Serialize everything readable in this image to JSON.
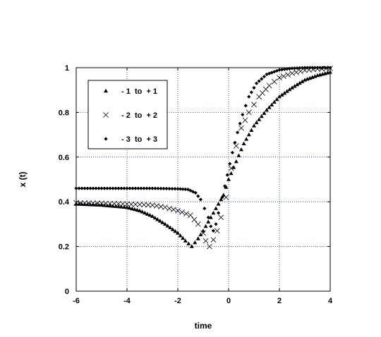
{
  "chart_data": {
    "type": "scatter",
    "title": "",
    "xlabel": "time",
    "ylabel": "x (t)",
    "xlim": [
      -6,
      4
    ],
    "ylim": [
      0,
      1
    ],
    "x_ticks": [
      -6,
      -4,
      -2,
      0,
      2,
      4
    ],
    "y_ticks": [
      0,
      0.2,
      0.4,
      0.6,
      0.8,
      1
    ],
    "x_tick_labels": [
      "-6",
      "-4",
      "-2",
      "0",
      "2",
      "4"
    ],
    "y_tick_labels": [
      "0",
      "0.2",
      "0.4",
      "0.6",
      "0.8",
      "1"
    ],
    "grid": true,
    "legend_position": "top-left",
    "series": [
      {
        "name": "- 1  to  + 1",
        "marker": "triangle",
        "points": [
          [
            -6,
            0.39
          ],
          [
            -5,
            0.385
          ],
          [
            -4,
            0.375
          ],
          [
            -3.5,
            0.36
          ],
          [
            -3,
            0.335
          ],
          [
            -2.5,
            0.3
          ],
          [
            -2,
            0.26
          ],
          [
            -1.7,
            0.225
          ],
          [
            -1.45,
            0.2
          ],
          [
            -1.2,
            0.235
          ],
          [
            -1,
            0.27
          ],
          [
            -0.8,
            0.31
          ],
          [
            -0.5,
            0.37
          ],
          [
            -0.2,
            0.43
          ],
          [
            0,
            0.5
          ],
          [
            0.3,
            0.58
          ],
          [
            0.6,
            0.66
          ],
          [
            1,
            0.74
          ],
          [
            1.5,
            0.81
          ],
          [
            2,
            0.87
          ],
          [
            2.5,
            0.91
          ],
          [
            3,
            0.945
          ],
          [
            3.5,
            0.965
          ],
          [
            4,
            0.98
          ]
        ]
      },
      {
        "name": "- 2  to  + 2",
        "marker": "cross",
        "points": [
          [
            -6,
            0.395
          ],
          [
            -5,
            0.393
          ],
          [
            -4,
            0.39
          ],
          [
            -3,
            0.385
          ],
          [
            -2.5,
            0.375
          ],
          [
            -2,
            0.36
          ],
          [
            -1.5,
            0.34
          ],
          [
            -1.2,
            0.3
          ],
          [
            -1,
            0.26
          ],
          [
            -0.9,
            0.225
          ],
          [
            -0.75,
            0.2
          ],
          [
            -0.6,
            0.23
          ],
          [
            -0.45,
            0.27
          ],
          [
            -0.3,
            0.33
          ],
          [
            -0.1,
            0.42
          ],
          [
            0.1,
            0.55
          ],
          [
            0.3,
            0.65
          ],
          [
            0.5,
            0.73
          ],
          [
            0.8,
            0.8
          ],
          [
            1.2,
            0.87
          ],
          [
            1.6,
            0.92
          ],
          [
            2,
            0.955
          ],
          [
            2.5,
            0.975
          ],
          [
            3,
            0.988
          ],
          [
            3.5,
            0.994
          ],
          [
            4,
            0.997
          ]
        ]
      },
      {
        "name": "- 3  to  + 3",
        "marker": "diamond",
        "points": [
          [
            -6,
            0.46
          ],
          [
            -5,
            0.46
          ],
          [
            -4,
            0.46
          ],
          [
            -3,
            0.46
          ],
          [
            -2,
            0.458
          ],
          [
            -1.6,
            0.455
          ],
          [
            -1.3,
            0.44
          ],
          [
            -1.1,
            0.41
          ],
          [
            -0.95,
            0.37
          ],
          [
            -0.8,
            0.33
          ],
          [
            -0.7,
            0.29
          ],
          [
            -0.6,
            0.27
          ],
          [
            -0.5,
            0.3
          ],
          [
            -0.4,
            0.35
          ],
          [
            -0.25,
            0.42
          ],
          [
            -0.05,
            0.52
          ],
          [
            0.15,
            0.62
          ],
          [
            0.35,
            0.71
          ],
          [
            0.55,
            0.79
          ],
          [
            0.8,
            0.87
          ],
          [
            1.1,
            0.93
          ],
          [
            1.5,
            0.97
          ],
          [
            2,
            0.99
          ],
          [
            2.5,
            0.997
          ],
          [
            3,
            1
          ],
          [
            3.5,
            1
          ],
          [
            4,
            1
          ]
        ]
      }
    ]
  }
}
